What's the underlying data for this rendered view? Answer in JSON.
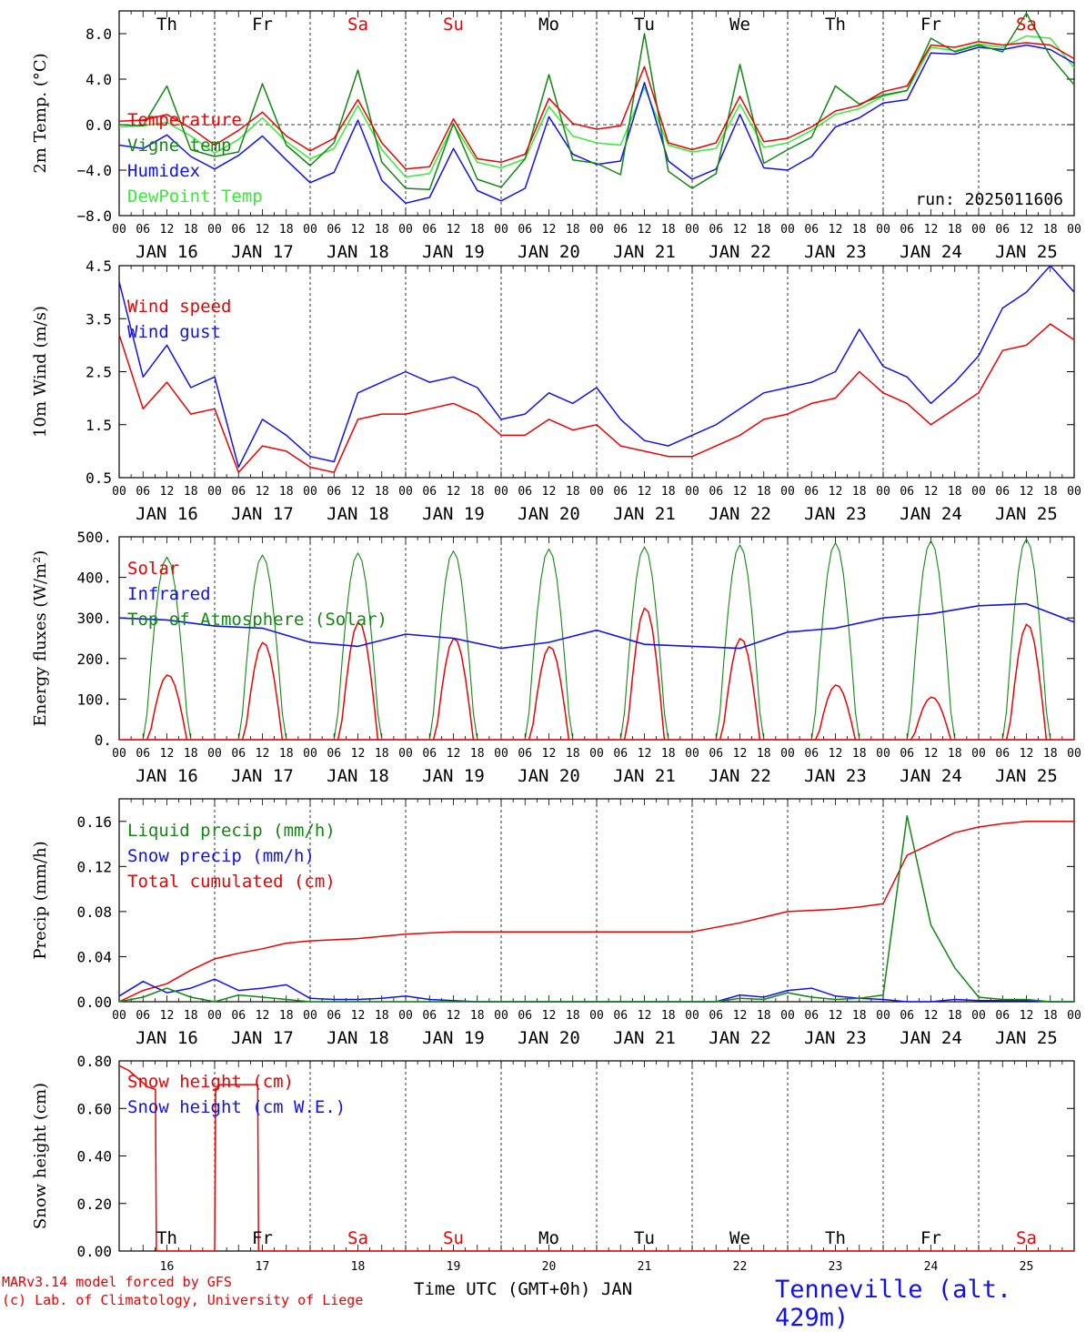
{
  "footer": {
    "model": "MARv3.14 model forced by GFS",
    "credit": "(c) Lab. of Climatology, University of Liege",
    "xlabel": "Time UTC (GMT+0h) JAN",
    "station": "Tenneville (alt. 429m)"
  },
  "colors": {
    "red": "#ee0000",
    "green": "#118811",
    "blue": "#1111ee",
    "lightgreen": "#33ee33",
    "black": "#000000"
  },
  "chart_data": [
    {
      "type": "line",
      "ylabel": "2m Temp. (°C)",
      "ylim": [
        -8,
        10
      ],
      "yticks": [
        "−8.0",
        "−4.0",
        "0.0",
        "4.0",
        "8.0"
      ],
      "ytick_values": [
        -8,
        -4,
        0,
        4,
        8
      ],
      "days": [
        "Th",
        "Fr",
        "Sa",
        "Su",
        "Mo",
        "Tu",
        "We",
        "Th",
        "Fr",
        "Sa"
      ],
      "weekend_days": [
        "Sa",
        "Su"
      ],
      "date_labels": [
        "JAN 16",
        "JAN 17",
        "JAN 18",
        "JAN 19",
        "JAN 20",
        "JAN 21",
        "JAN 22",
        "JAN 23",
        "JAN 24",
        "JAN 25"
      ],
      "hour_ticks": [
        "00",
        "06",
        "12",
        "18"
      ],
      "annotation": "run: 2025011606",
      "zero_line": true,
      "x_days": [
        0,
        0.25,
        0.5,
        0.75,
        1,
        1.25,
        1.5,
        1.75,
        2,
        2.25,
        2.5,
        2.75,
        3,
        3.25,
        3.5,
        3.75,
        4,
        4.25,
        4.5,
        4.75,
        5,
        5.25,
        5.5,
        5.75,
        6,
        6.25,
        6.5,
        6.75,
        7,
        7.25,
        7.5,
        7.75,
        8,
        8.25,
        8.5,
        8.75,
        9,
        9.25,
        9.5,
        9.75,
        10
      ],
      "series": [
        {
          "name": "Temperature",
          "color": "#ee0000",
          "values": [
            0.3,
            0.4,
            0.9,
            -0.3,
            -1.8,
            -0.5,
            1.1,
            -1.0,
            -2.3,
            -1.2,
            2.2,
            -1.6,
            -3.9,
            -3.7,
            0.5,
            -3.0,
            -3.3,
            -2.6,
            2.3,
            0.1,
            -0.4,
            -0.1,
            5.1,
            -1.6,
            -2.2,
            -1.6,
            2.5,
            -1.5,
            -1.2,
            -0.2,
            1.2,
            1.7,
            2.9,
            3.4,
            7.0,
            6.8,
            7.3,
            7.0,
            7.2,
            7.0,
            5.8
          ]
        },
        {
          "name": "Vigne temp",
          "color": "#118811",
          "values": [
            0.0,
            -0.1,
            3.4,
            -2.2,
            -2.8,
            -2.4,
            3.6,
            -1.8,
            -3.6,
            -1.6,
            4.8,
            -3.3,
            -5.6,
            -5.7,
            0.1,
            -4.8,
            -5.5,
            -3.0,
            4.4,
            -3.1,
            -3.4,
            -4.4,
            8.0,
            -4.1,
            -5.6,
            -4.3,
            5.3,
            -3.4,
            -2.2,
            -1.1,
            3.4,
            1.8,
            2.6,
            3.0,
            7.6,
            6.4,
            7.0,
            6.4,
            9.8,
            6.0,
            3.5
          ]
        },
        {
          "name": "Humidex",
          "color": "#1111ee",
          "values": [
            -1.8,
            -2.1,
            -0.9,
            -2.8,
            -3.9,
            -2.7,
            -1.0,
            -3.1,
            -5.1,
            -4.2,
            0.4,
            -4.9,
            -6.9,
            -6.4,
            -2.1,
            -5.8,
            -6.7,
            -5.6,
            0.7,
            -2.6,
            -3.5,
            -3.2,
            3.7,
            -3.2,
            -4.8,
            -3.9,
            0.9,
            -3.8,
            -4.0,
            -2.8,
            -0.2,
            0.6,
            1.9,
            2.2,
            6.3,
            6.2,
            6.8,
            6.6,
            7.0,
            6.6,
            5.4
          ]
        },
        {
          "name": "DewPoint Temp",
          "color": "#33ee33",
          "values": [
            -0.2,
            -0.1,
            0.2,
            -1.0,
            -2.5,
            -1.3,
            0.6,
            -1.5,
            -3.0,
            -2.1,
            1.7,
            -2.2,
            -4.6,
            -4.3,
            0.0,
            -3.3,
            -3.8,
            -3.0,
            1.6,
            -1.0,
            -1.6,
            -1.8,
            3.3,
            -1.8,
            -2.4,
            -2.1,
            1.8,
            -2.0,
            -1.6,
            -0.5,
            0.9,
            1.4,
            2.5,
            3.0,
            6.8,
            6.5,
            7.1,
            6.8,
            7.8,
            7.6,
            5.0
          ]
        }
      ]
    },
    {
      "type": "line",
      "ylabel": "10m Wind (m/s)",
      "ylim": [
        0.5,
        4.5
      ],
      "yticks": [
        "0.5",
        "1.5",
        "2.5",
        "3.5",
        "4.5"
      ],
      "ytick_values": [
        0.5,
        1.5,
        2.5,
        3.5,
        4.5
      ],
      "date_labels": [
        "JAN 16",
        "JAN 17",
        "JAN 18",
        "JAN 19",
        "JAN 20",
        "JAN 21",
        "JAN 22",
        "JAN 23",
        "JAN 24",
        "JAN 25"
      ],
      "hour_ticks": [
        "00",
        "06",
        "12",
        "18"
      ],
      "x_days": [
        0,
        0.25,
        0.5,
        0.75,
        1,
        1.25,
        1.5,
        1.75,
        2,
        2.25,
        2.5,
        2.75,
        3,
        3.25,
        3.5,
        3.75,
        4,
        4.25,
        4.5,
        4.75,
        5,
        5.25,
        5.5,
        5.75,
        6,
        6.25,
        6.5,
        6.75,
        7,
        7.25,
        7.5,
        7.75,
        8,
        8.25,
        8.5,
        8.75,
        9,
        9.25,
        9.5,
        9.75,
        10
      ],
      "series": [
        {
          "name": "Wind speed",
          "color": "#ee0000",
          "values": [
            3.2,
            1.8,
            2.3,
            1.7,
            1.8,
            0.6,
            1.1,
            1.0,
            0.7,
            0.6,
            1.6,
            1.7,
            1.7,
            1.8,
            1.9,
            1.7,
            1.3,
            1.3,
            1.6,
            1.4,
            1.5,
            1.1,
            1.0,
            0.9,
            0.9,
            1.1,
            1.3,
            1.6,
            1.7,
            1.9,
            2.0,
            2.5,
            2.1,
            1.9,
            1.5,
            1.8,
            2.1,
            2.9,
            3.0,
            3.4,
            3.1
          ]
        },
        {
          "name": "Wind gust",
          "color": "#1111ee",
          "values": [
            4.2,
            2.4,
            3.0,
            2.2,
            2.4,
            0.7,
            1.6,
            1.3,
            0.9,
            0.8,
            2.1,
            2.3,
            2.5,
            2.3,
            2.4,
            2.2,
            1.6,
            1.7,
            2.1,
            1.9,
            2.2,
            1.6,
            1.2,
            1.1,
            1.3,
            1.5,
            1.8,
            2.1,
            2.2,
            2.3,
            2.5,
            3.3,
            2.6,
            2.4,
            1.9,
            2.3,
            2.8,
            3.7,
            4.0,
            4.5,
            4.0
          ]
        }
      ]
    },
    {
      "type": "line",
      "ylabel": "Energy fluxes (W/m²)",
      "ylim": [
        0,
        500
      ],
      "yticks": [
        "0.",
        "100.",
        "200.",
        "300.",
        "400.",
        "500."
      ],
      "ytick_values": [
        0,
        100,
        200,
        300,
        400,
        500
      ],
      "date_labels": [
        "JAN 16",
        "JAN 17",
        "JAN 18",
        "JAN 19",
        "JAN 20",
        "JAN 21",
        "JAN 22",
        "JAN 23",
        "JAN 24",
        "JAN 25"
      ],
      "hour_ticks": [
        "00",
        "06",
        "12",
        "18"
      ],
      "solar_peaks": [
        160,
        240,
        290,
        250,
        230,
        325,
        250,
        135,
        105,
        285
      ],
      "toa_peaks": [
        450,
        455,
        460,
        465,
        470,
        475,
        480,
        485,
        490,
        495
      ],
      "x_days": [
        0,
        0.5,
        1,
        1.5,
        2,
        2.5,
        3,
        3.5,
        4,
        4.5,
        5,
        5.5,
        6,
        6.5,
        7,
        7.5,
        8,
        8.5,
        9,
        9.5,
        10
      ],
      "series": [
        {
          "name": "Solar",
          "color": "#ee0000",
          "values": []
        },
        {
          "name": "Infrared",
          "color": "#1111ee",
          "values": [
            300,
            295,
            280,
            275,
            240,
            230,
            260,
            250,
            225,
            240,
            270,
            235,
            230,
            225,
            265,
            275,
            300,
            310,
            330,
            335,
            290
          ]
        },
        {
          "name": "Top of Atmosphere (Solar)",
          "color": "#118811",
          "values": []
        }
      ]
    },
    {
      "type": "line",
      "ylabel": "Precip (mm/h)",
      "ylim": [
        0,
        0.18
      ],
      "yticks": [
        "0.00",
        "0.04",
        "0.08",
        "0.12",
        "0.16"
      ],
      "ytick_values": [
        0,
        0.04,
        0.08,
        0.12,
        0.16
      ],
      "date_labels": [
        "JAN 16",
        "JAN 17",
        "JAN 18",
        "JAN 19",
        "JAN 20",
        "JAN 21",
        "JAN 22",
        "JAN 23",
        "JAN 24",
        "JAN 25"
      ],
      "hour_ticks": [
        "00",
        "06",
        "12",
        "18"
      ],
      "x_days": [
        0,
        0.25,
        0.5,
        0.75,
        1,
        1.25,
        1.5,
        1.75,
        2,
        2.25,
        2.5,
        2.75,
        3,
        3.25,
        3.5,
        3.75,
        4,
        4.25,
        4.5,
        4.75,
        5,
        5.25,
        5.5,
        5.75,
        6,
        6.25,
        6.5,
        6.75,
        7,
        7.25,
        7.5,
        7.75,
        8,
        8.25,
        8.5,
        8.75,
        9,
        9.25,
        9.5,
        9.75,
        10
      ],
      "series": [
        {
          "name": "Liquid precip (mm/h)",
          "color": "#118811",
          "values": [
            0.0,
            0.004,
            0.012,
            0.004,
            0.0,
            0.006,
            0.004,
            0.002,
            0.0,
            0.0,
            0.0,
            0.0,
            0.0,
            0.0,
            0.0,
            0.0,
            0.0,
            0.0,
            0.0,
            0.0,
            0.0,
            0.0,
            0.0,
            0.0,
            0.0,
            0.0,
            0.003,
            0.002,
            0.008,
            0.004,
            0.002,
            0.003,
            0.006,
            0.165,
            0.068,
            0.03,
            0.004,
            0.002,
            0.002,
            0.0,
            0.0
          ]
        },
        {
          "name": "Snow precip (mm/h)",
          "color": "#1111ee",
          "values": [
            0.005,
            0.018,
            0.008,
            0.012,
            0.02,
            0.01,
            0.012,
            0.015,
            0.003,
            0.002,
            0.002,
            0.003,
            0.005,
            0.002,
            0.001,
            0.0,
            0.0,
            0.0,
            0.0,
            0.0,
            0.0,
            0.0,
            0.0,
            0.0,
            0.0,
            0.0,
            0.006,
            0.004,
            0.01,
            0.012,
            0.005,
            0.003,
            0.002,
            0.0,
            0.0,
            0.002,
            0.001,
            0.001,
            0.001,
            0.0,
            0.0
          ]
        },
        {
          "name": "Total cumulated (cm)",
          "color": "#ee0000",
          "values": [
            0.0,
            0.01,
            0.016,
            0.028,
            0.038,
            0.043,
            0.047,
            0.052,
            0.054,
            0.055,
            0.056,
            0.058,
            0.06,
            0.061,
            0.062,
            0.062,
            0.062,
            0.062,
            0.062,
            0.062,
            0.062,
            0.062,
            0.062,
            0.062,
            0.062,
            0.066,
            0.07,
            0.075,
            0.08,
            0.081,
            0.082,
            0.084,
            0.087,
            0.13,
            0.14,
            0.15,
            0.155,
            0.158,
            0.16,
            0.16,
            0.16
          ]
        }
      ]
    },
    {
      "type": "line",
      "ylabel": "Snow height (cm)",
      "ylim": [
        0,
        0.8
      ],
      "yticks": [
        "0.00",
        "0.20",
        "0.40",
        "0.60",
        "0.80"
      ],
      "ytick_values": [
        0,
        0.2,
        0.4,
        0.6,
        0.8
      ],
      "days": [
        "Th",
        "Fr",
        "Sa",
        "Su",
        "Mo",
        "Tu",
        "We",
        "Th",
        "Fr",
        "Sa"
      ],
      "weekend_days": [
        "Sa",
        "Su"
      ],
      "day_numbers": [
        "16",
        "17",
        "18",
        "19",
        "20",
        "21",
        "22",
        "23",
        "24",
        "25"
      ],
      "x_days": [
        0,
        0.1,
        0.3,
        0.38,
        0.39,
        1.0,
        1.01,
        1.06,
        1.45,
        1.46,
        10
      ],
      "series": [
        {
          "name": "Snow height (cm)",
          "color": "#ee0000",
          "values": [
            0.78,
            0.76,
            0.69,
            0.68,
            0,
            0,
            0.68,
            0.7,
            0.7,
            0,
            0
          ]
        },
        {
          "name": "Snow height (cm W.E.)",
          "color": "#1111ee",
          "values": []
        }
      ]
    }
  ]
}
